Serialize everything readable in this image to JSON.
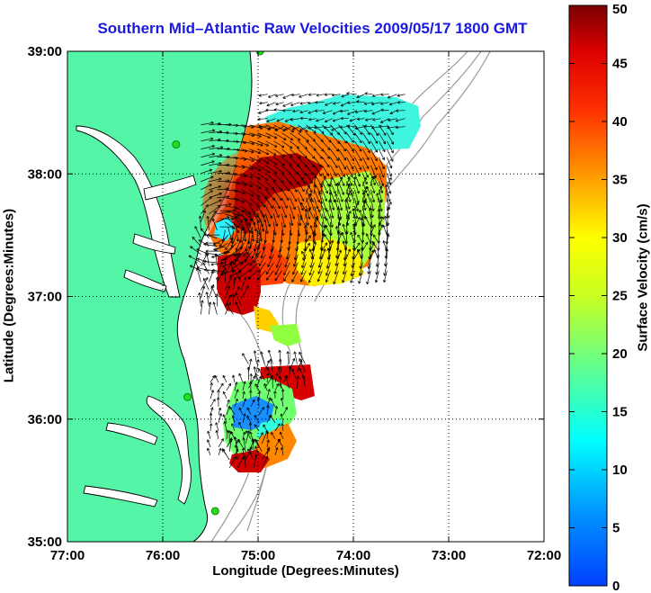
{
  "chart_data": {
    "type": "heatmap",
    "title": "Southern Mid–Atlantic Raw Velocities 2009/05/17 1800 GMT",
    "xlabel": "Longitude (Degrees:Minutes)",
    "ylabel": "Latitude (Degrees:Minutes)",
    "colorbar_label": "Surface Velocity (cm/s)",
    "x_ticks": [
      "77:00",
      "76:00",
      "75:00",
      "74:00",
      "73:00",
      "72:00"
    ],
    "y_ticks": [
      "39:00",
      "38:00",
      "37:00",
      "36:00",
      "35:00"
    ],
    "colorbar_ticks": [
      "0",
      "5",
      "10",
      "15",
      "20",
      "25",
      "30",
      "35",
      "40",
      "45",
      "50"
    ],
    "xlim": [
      -77,
      -72
    ],
    "ylim": [
      35,
      39
    ],
    "clim": [
      0,
      50
    ],
    "grid": true,
    "colormap": "jet",
    "colors": {
      "title": "#1a1ae0",
      "land": "#55f5a8",
      "coast": "#000000",
      "bathymetry": "#9a9a9a",
      "stations": "#22dd22"
    },
    "regions": [
      {
        "name": "northern-cyan",
        "lon": [
          -74.9,
          -73.4
        ],
        "lat": [
          38.35,
          38.65
        ],
        "speed": 13
      },
      {
        "name": "central-gyre",
        "lon": [
          -75.6,
          -73.6
        ],
        "lat": [
          37.15,
          38.4
        ],
        "speed": 42
      },
      {
        "name": "gyre-core",
        "lon": [
          -75.4,
          -74.9
        ],
        "lat": [
          37.35,
          37.7
        ],
        "speed": 48
      },
      {
        "name": "eastern-green",
        "lon": [
          -74.5,
          -73.6
        ],
        "lat": [
          37.3,
          37.9
        ],
        "speed": 22
      },
      {
        "name": "bay-mouth-red",
        "lon": [
          -75.6,
          -75.1
        ],
        "lat": [
          36.85,
          37.25
        ],
        "speed": 46
      },
      {
        "name": "southern-blue",
        "lon": [
          -75.5,
          -74.7
        ],
        "lat": [
          35.7,
          36.3
        ],
        "speed": 12
      },
      {
        "name": "southern-red",
        "lon": [
          -75.3,
          -74.9
        ],
        "lat": [
          35.6,
          35.8
        ],
        "speed": 46
      },
      {
        "name": "hatteras-red",
        "lon": [
          -75.1,
          -74.5
        ],
        "lat": [
          36.25,
          36.45
        ],
        "speed": 44
      }
    ],
    "stations": [
      {
        "lon": -74.98,
        "lat": 39.0
      },
      {
        "lon": -75.86,
        "lat": 38.24
      },
      {
        "lon": -75.74,
        "lat": 36.18
      },
      {
        "lon": -75.45,
        "lat": 35.25
      }
    ]
  }
}
